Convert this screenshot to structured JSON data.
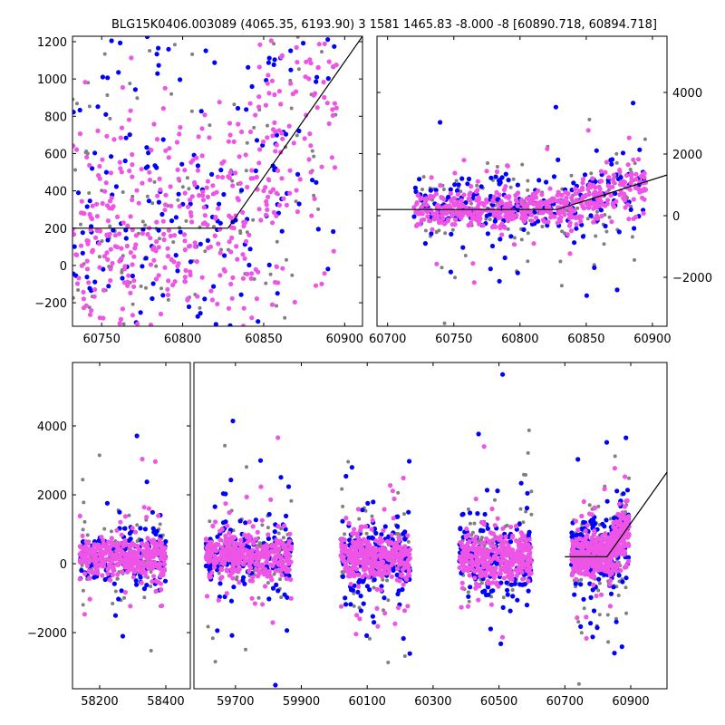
{
  "chart_data": {
    "type": "scatter",
    "title": "BLG15K0406.003089 (4065.35, 6193.90)    3 1581 1465.83 -8.000 -8 [60890.718, 60894.718]",
    "colors": {
      "blue": "#0000ff",
      "magenta": "#ee55e6",
      "gray": "#808080",
      "model": "#000000"
    },
    "model": {
      "baseline": 200,
      "break_x": 60828,
      "slope_per_day": 13.5
    },
    "seasons": [
      {
        "x": [
          58140,
          58400
        ],
        "sd": 330
      },
      {
        "x": [
          59610,
          59870
        ],
        "sd": 380
      },
      {
        "x": [
          60020,
          60230
        ],
        "sd": 400
      },
      {
        "x": [
          60380,
          60600
        ],
        "sd": 420
      },
      {
        "x": [
          60720,
          60895
        ],
        "sd": 330
      }
    ],
    "panels": [
      {
        "name": "top-left",
        "xlim": [
          60732,
          60911
        ],
        "ylim": [
          -326,
          1229
        ],
        "xticks": [
          60750,
          60800,
          60850,
          60900
        ],
        "yticks": [
          -200,
          0,
          200,
          400,
          600,
          800,
          1000,
          1200
        ],
        "yaxis": "left"
      },
      {
        "name": "top-right",
        "xlim": [
          60692,
          60911
        ],
        "ylim": [
          -3588,
          5824
        ],
        "xticks": [
          60700,
          60750,
          60800,
          60850,
          60900
        ],
        "yticks": [
          -2000,
          0,
          2000,
          4000
        ],
        "yaxis": "right"
      },
      {
        "name": "bottom-left",
        "xlim": [
          58118,
          58474
        ],
        "ylim": [
          -3630,
          5842
        ],
        "xticks": [
          58200,
          58400
        ],
        "yticks": [
          -2000,
          0,
          2000,
          4000
        ],
        "yaxis": "left"
      },
      {
        "name": "bottom-right",
        "xlim": [
          59574,
          61010
        ],
        "ylim": [
          -3630,
          5842
        ],
        "xticks": [
          59700,
          59900,
          60100,
          60300,
          60500,
          60700,
          60900
        ],
        "yticks": [],
        "yaxis": "none"
      }
    ]
  }
}
